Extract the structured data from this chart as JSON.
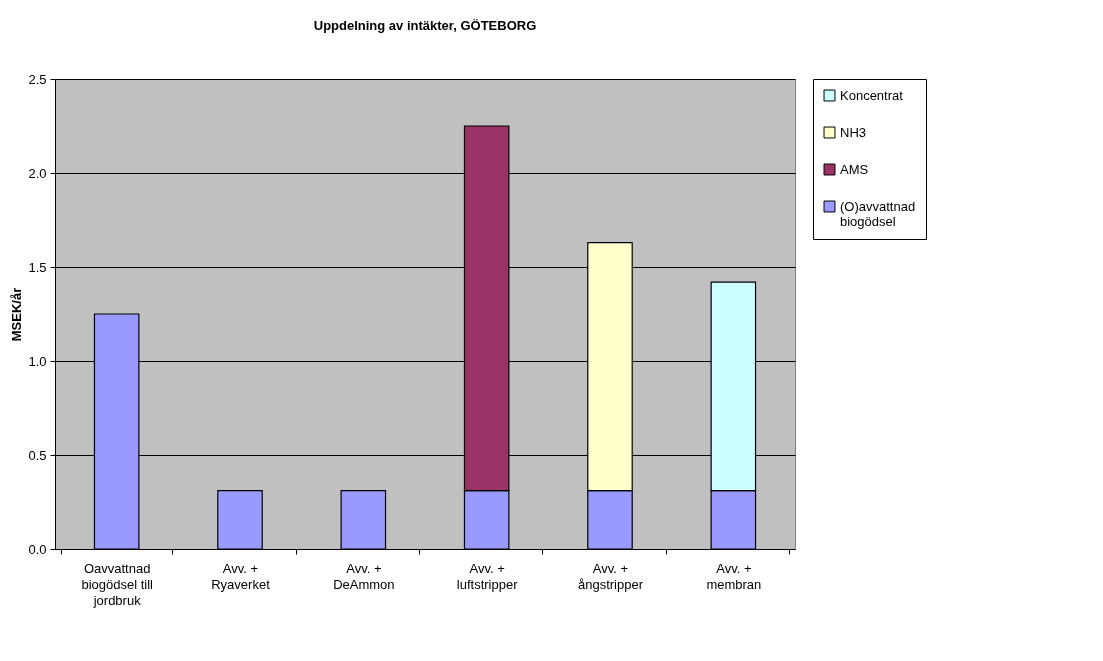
{
  "chart_data": {
    "type": "bar",
    "title": "Uppdelning av intäkter, GÖTEBORG",
    "ylabel": "MSEK/år",
    "categories": [
      "Oavvattnad\nbiogödsel till\njordbruk",
      "Avv. +\nRyaverket",
      "Avv. +\nDeAmmon",
      "Avv. +\nluftstripper",
      "Avv. +\nångstripper",
      "Avv. +\nmembran"
    ],
    "stacked": true,
    "series": [
      {
        "name": "(O)avvattnad biogödsel",
        "color": "#9999ff",
        "values": [
          1.25,
          0.31,
          0.31,
          0.31,
          0.31,
          0.31
        ]
      },
      {
        "name": "AMS",
        "color": "#993366",
        "values": [
          null,
          null,
          null,
          1.94,
          null,
          null
        ]
      },
      {
        "name": "NH3",
        "color": "#ffffcc",
        "values": [
          null,
          null,
          null,
          null,
          1.32,
          null
        ]
      },
      {
        "name": "Koncentrat",
        "color": "#ccffff",
        "values": [
          null,
          null,
          null,
          null,
          null,
          1.11
        ]
      }
    ],
    "ylim": [
      0,
      2.5
    ],
    "yticks": [
      {
        "value": 0,
        "label": "0.0"
      },
      0.5,
      {
        "value": 1,
        "label": "1.0"
      },
      1.5,
      {
        "value": 2,
        "label": "2.0"
      },
      2.5
    ],
    "grid": "y",
    "legend": "right"
  }
}
